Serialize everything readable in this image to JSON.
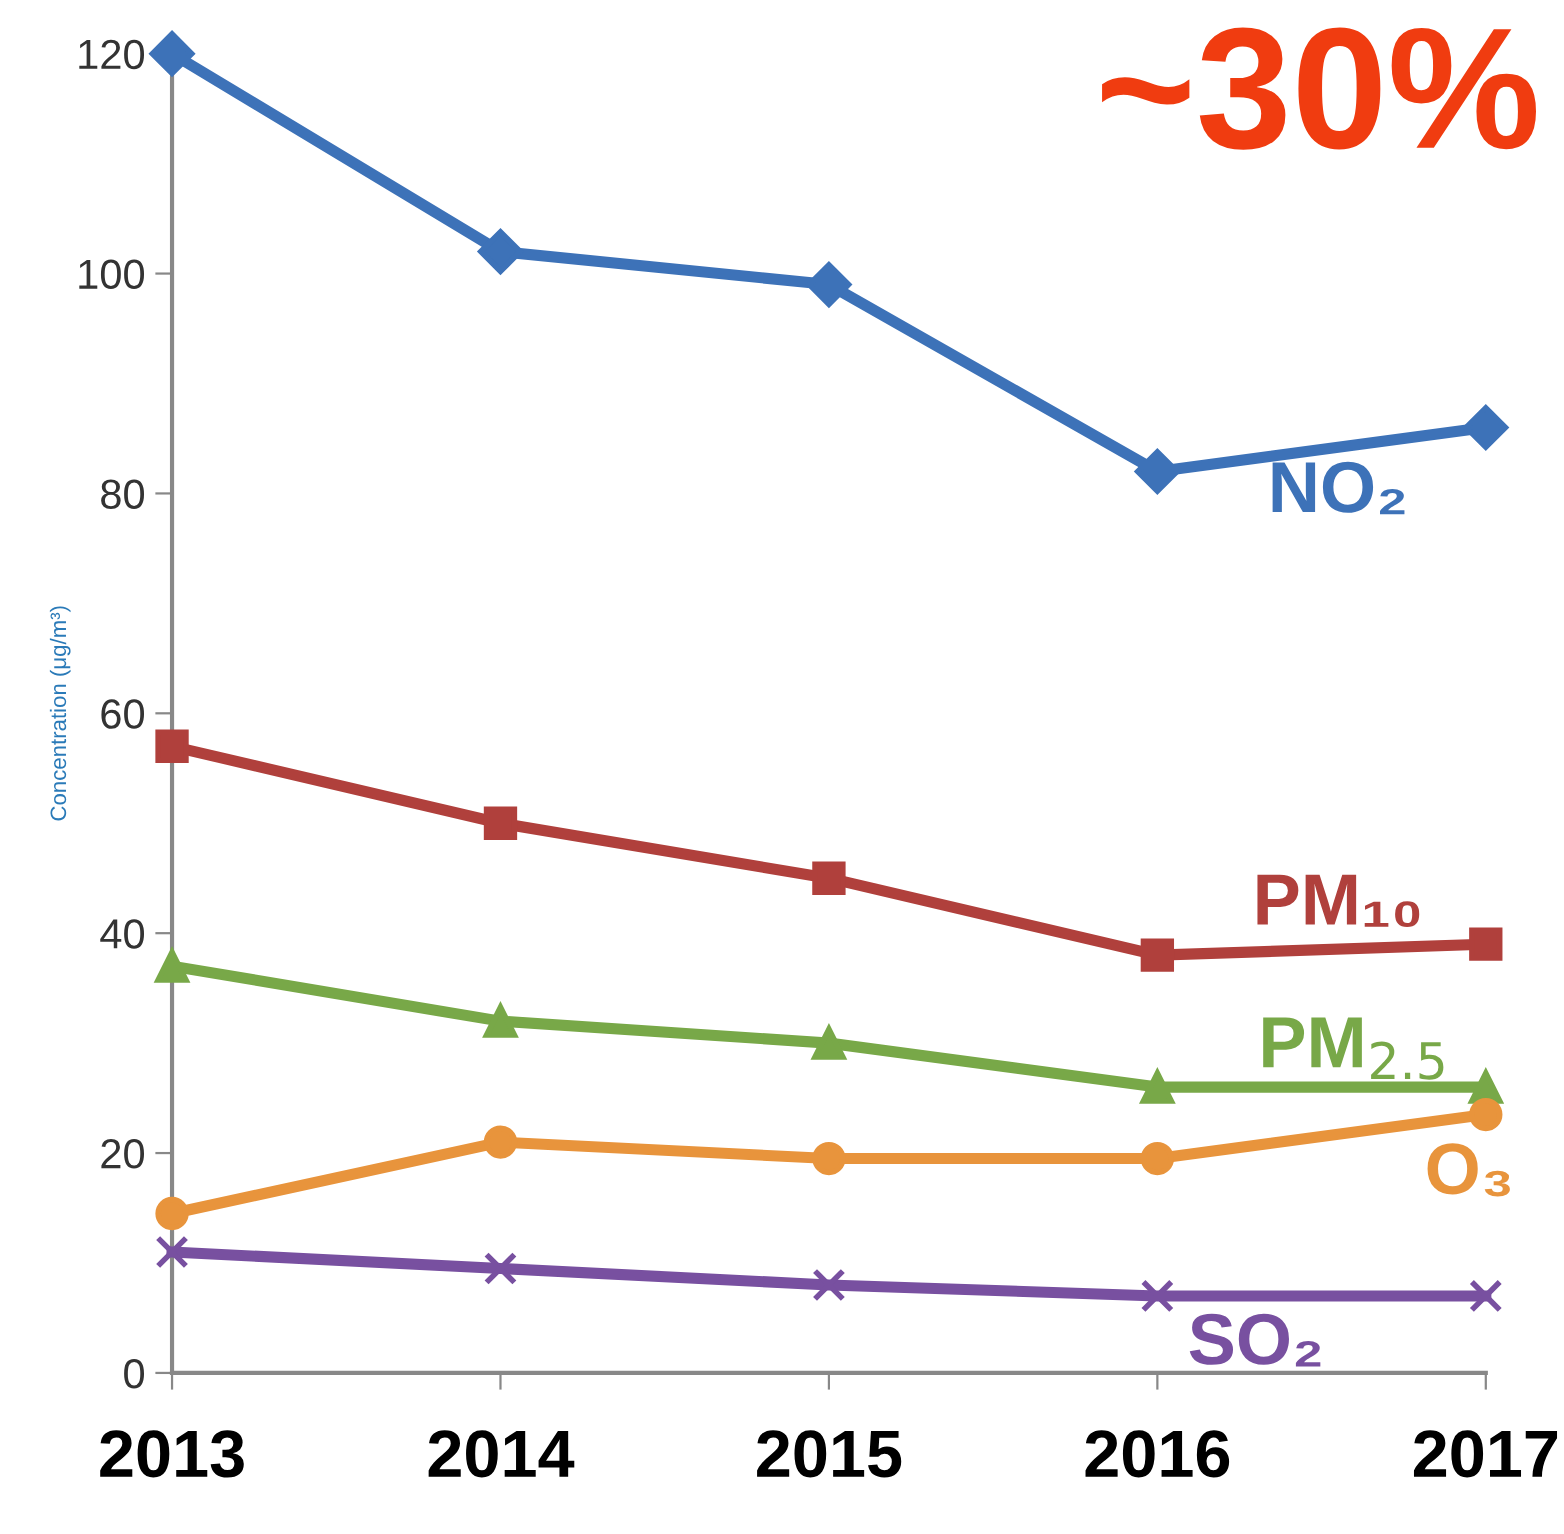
{
  "chart_data": {
    "type": "line",
    "categories": [
      "2013",
      "2014",
      "2015",
      "2016",
      "2017"
    ],
    "ylabel": "Concentration (μg/m³)",
    "ylim": [
      0,
      120
    ],
    "yticks": [
      0,
      20,
      40,
      60,
      80,
      100,
      120
    ],
    "grid": false,
    "legend": false,
    "annotations": [
      "~30%"
    ],
    "series": [
      {
        "name": "NO₂",
        "color": "#3d72b8",
        "marker": "diamond",
        "values": [
          120,
          102,
          99,
          82,
          86
        ]
      },
      {
        "name": "PM₁₀",
        "color": "#b0403c",
        "marker": "square",
        "values": [
          57,
          50,
          45,
          38,
          39
        ]
      },
      {
        "name": "PM$_{2.5}$",
        "color": "#78a848",
        "marker": "triangle",
        "values": [
          37,
          32,
          30,
          26,
          26
        ]
      },
      {
        "name": "O₃",
        "color": "#e8943c",
        "marker": "circle",
        "values": [
          14.5,
          21,
          19.5,
          19.5,
          23.5
        ]
      },
      {
        "name": "SO₂",
        "color": "#7850a0",
        "marker": "cross",
        "values": [
          11,
          9.5,
          8,
          7,
          7
        ]
      }
    ]
  }
}
